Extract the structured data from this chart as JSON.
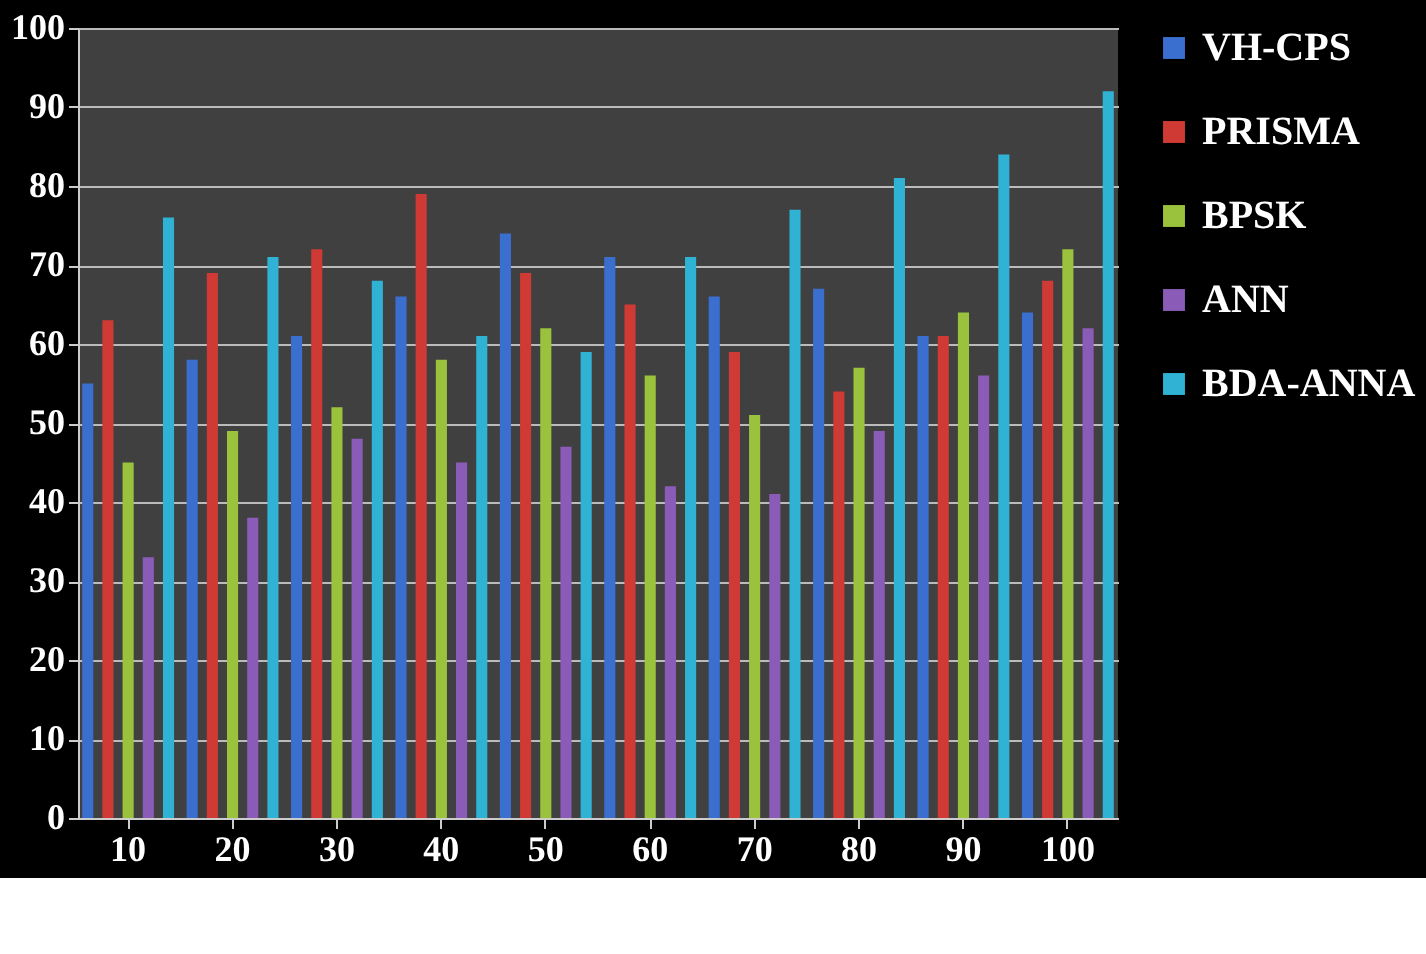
{
  "chart_data": {
    "type": "bar",
    "categories": [
      "10",
      "20",
      "30",
      "40",
      "50",
      "60",
      "70",
      "80",
      "90",
      "100"
    ],
    "series": [
      {
        "name": "VH-CPS",
        "color": "#3a6fd0",
        "values": [
          55,
          58,
          61,
          66,
          74,
          71,
          66,
          67,
          61,
          64
        ]
      },
      {
        "name": "PRISMA",
        "color": "#d03a35",
        "values": [
          63,
          69,
          72,
          79,
          69,
          65,
          59,
          54,
          61,
          68
        ]
      },
      {
        "name": "BPSK",
        "color": "#9ac23c",
        "values": [
          45,
          49,
          52,
          58,
          62,
          56,
          51,
          57,
          64,
          72
        ]
      },
      {
        "name": "ANN",
        "color": "#8a5cb8",
        "values": [
          33,
          38,
          48,
          45,
          47,
          42,
          41,
          49,
          56,
          62
        ]
      },
      {
        "name": "BDA-ANNA",
        "color": "#2fb2d4",
        "values": [
          76,
          71,
          68,
          61,
          59,
          71,
          77,
          81,
          84,
          92
        ]
      }
    ],
    "ylim": [
      0,
      100
    ],
    "yticks": [
      0,
      10,
      20,
      30,
      40,
      50,
      60,
      70,
      80,
      90,
      100
    ],
    "grid": "y",
    "legend": "right"
  }
}
